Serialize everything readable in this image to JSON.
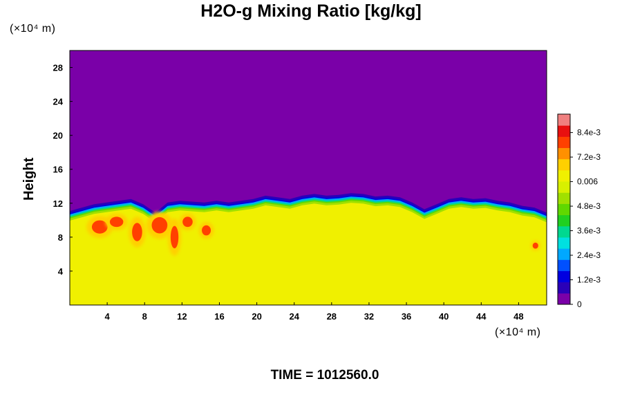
{
  "chart_data": {
    "type": "heatmap",
    "title": "H2O-g Mixing Ratio [kg/kg]",
    "ylabel": "Height",
    "x_unit_label": "(×10⁴ m)",
    "y_unit_label": "(×10⁴ m)",
    "footer": "TIME = 1012560.0",
    "xlim": [
      0,
      51
    ],
    "ylim": [
      0,
      30
    ],
    "x_ticks": [
      "4",
      "8",
      "12",
      "16",
      "20",
      "24",
      "28",
      "32",
      "36",
      "40",
      "44",
      "48"
    ],
    "y_ticks": [
      "4",
      "8",
      "12",
      "16",
      "20",
      "24",
      "28"
    ],
    "colorbar": {
      "range": [
        0,
        0.0093
      ],
      "tick_labels": [
        {
          "value": 0.0,
          "label": "0"
        },
        {
          "value": 0.0012,
          "label": "1.2e-3"
        },
        {
          "value": 0.0024,
          "label": "2.4e-3"
        },
        {
          "value": 0.0036,
          "label": "3.6e-3"
        },
        {
          "value": 0.0048,
          "label": "4.8e-3"
        },
        {
          "value": 0.006,
          "label": "0.006"
        },
        {
          "value": 0.0072,
          "label": "7.2e-3"
        },
        {
          "value": 0.0084,
          "label": "8.4e-3"
        }
      ],
      "colors": [
        "#7a00a8",
        "#2a00b8",
        "#0000e0",
        "#0050ff",
        "#00a8ff",
        "#00e0e0",
        "#00d890",
        "#20d020",
        "#60d800",
        "#a0e000",
        "#d8f000",
        "#f0f000",
        "#ffd000",
        "#ff9000",
        "#ff4000",
        "#e81010",
        "#f08080"
      ]
    },
    "fields": {
      "upper_value": 0.0,
      "lower_value": 0.0062,
      "moist_patch_value": 0.0078,
      "interface_height": [
        10.6,
        11.0,
        11.4,
        11.6,
        11.8,
        12.0,
        11.4,
        10.4,
        11.6,
        11.8,
        11.7,
        11.6,
        11.8,
        11.6,
        11.8,
        12.0,
        12.4,
        12.2,
        12.0,
        12.4,
        12.6,
        12.4,
        12.5,
        12.7,
        12.6,
        12.3,
        12.4,
        12.2,
        11.6,
        10.8,
        11.4,
        12.0,
        12.2,
        12.0,
        12.1,
        11.8,
        11.6,
        11.2,
        11.0,
        10.4
      ],
      "moist_patches": [
        {
          "x": 3.2,
          "y": 9.2,
          "rx": 1.4,
          "ry": 1.3
        },
        {
          "x": 5.0,
          "y": 9.8,
          "rx": 1.2,
          "ry": 1.0
        },
        {
          "x": 7.2,
          "y": 8.6,
          "rx": 0.9,
          "ry": 1.8
        },
        {
          "x": 9.6,
          "y": 9.4,
          "rx": 1.4,
          "ry": 1.6
        },
        {
          "x": 11.2,
          "y": 8.0,
          "rx": 0.7,
          "ry": 2.2
        },
        {
          "x": 12.6,
          "y": 9.8,
          "rx": 0.9,
          "ry": 1.0
        },
        {
          "x": 14.6,
          "y": 8.8,
          "rx": 0.8,
          "ry": 1.0
        },
        {
          "x": 49.8,
          "y": 7.0,
          "rx": 0.5,
          "ry": 0.6
        }
      ]
    }
  }
}
